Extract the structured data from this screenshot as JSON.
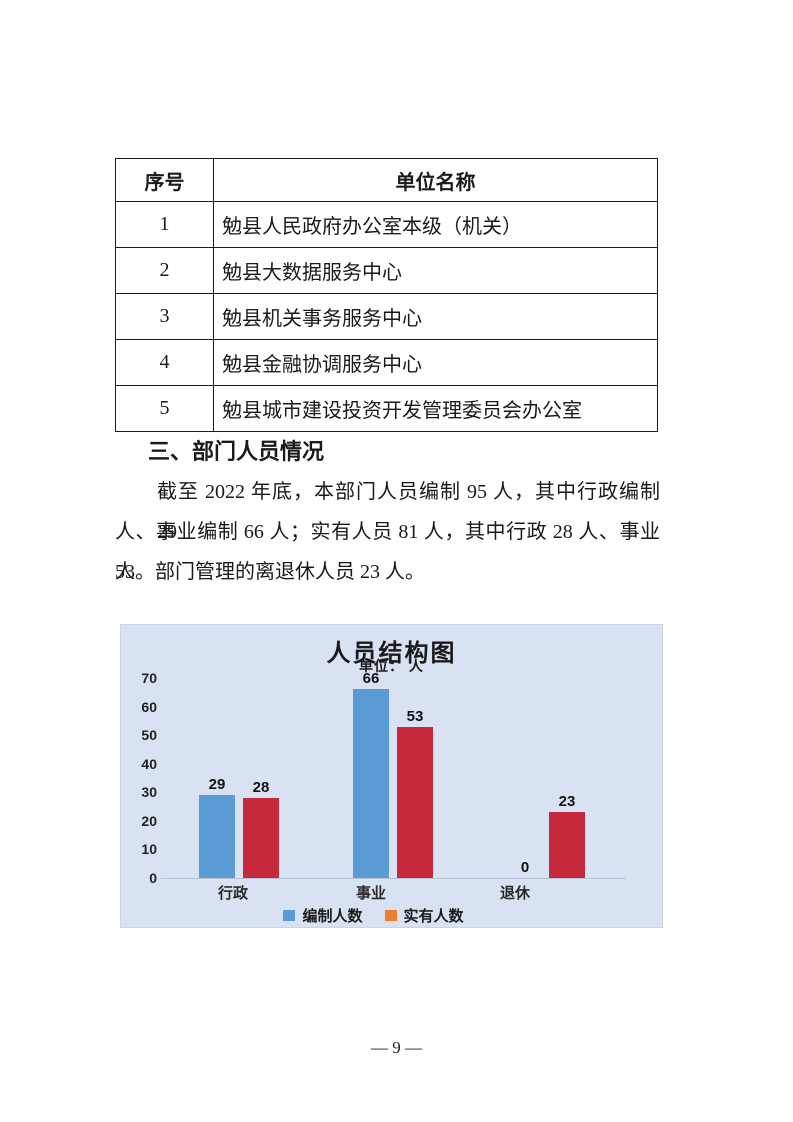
{
  "page": {
    "number_label": "— 9 —"
  },
  "table": {
    "headers": [
      "序号",
      "单位名称"
    ],
    "rows": [
      {
        "no": "1",
        "name": "勉县人民政府办公室本级（机关）"
      },
      {
        "no": "2",
        "name": "勉县大数据服务中心"
      },
      {
        "no": "3",
        "name": "勉县机关事务服务中心"
      },
      {
        "no": "4",
        "name": "勉县金融协调服务中心"
      },
      {
        "no": "5",
        "name": "勉县城市建设投资开发管理委员会办公室"
      }
    ]
  },
  "section": {
    "heading": "三、部门人员情况",
    "paragraph_lines": [
      "截至 2022 年底，本部门人员编制 95 人，其中行政编制 29",
      "人、事业编制 66 人；实有人员 81 人，其中行政 28 人、事业 53",
      "人。部门管理的离退休人员 23 人。"
    ]
  },
  "chart_data": {
    "type": "bar",
    "title": "人员结构图",
    "subtitle": "单位： 人",
    "categories": [
      "行政",
      "事业",
      "退休"
    ],
    "series": [
      {
        "name": "编制人数",
        "values": [
          29,
          66,
          0
        ],
        "bar_color": "#5B9BD5",
        "legend_color": "#5B9BD5"
      },
      {
        "name": "实有人数",
        "values": [
          28,
          53,
          23
        ],
        "bar_color": "#C5293B",
        "legend_color": "#ED7D31"
      }
    ],
    "ylim": [
      0,
      70
    ],
    "yticks": [
      0,
      10,
      20,
      30,
      40,
      50,
      60,
      70
    ],
    "background": "#D9E2F3",
    "grid": "baseline-only",
    "legend_position": "bottom"
  }
}
